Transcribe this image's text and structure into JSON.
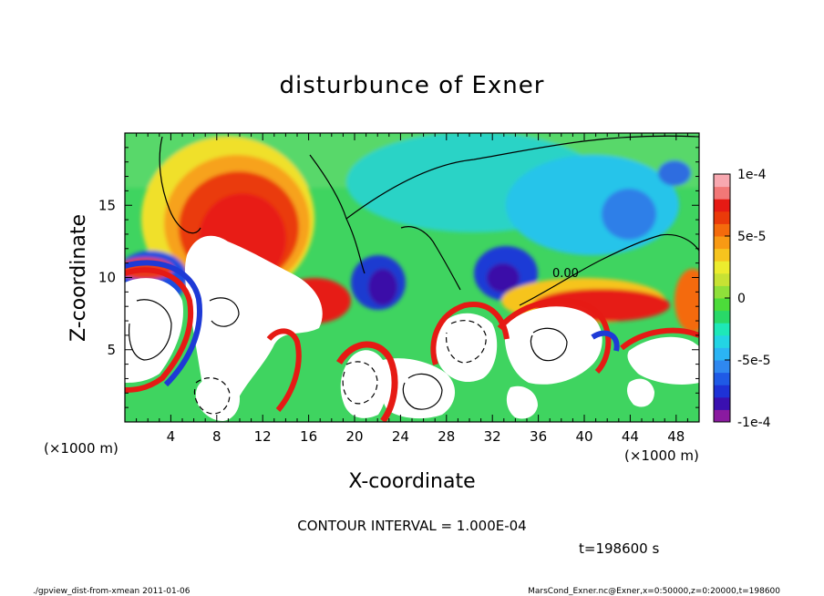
{
  "chart_data": {
    "type": "heatmap",
    "title": "disturbunce of Exner",
    "xlabel": "X-coordinate",
    "ylabel": "Z-coordinate",
    "x_unit": "(×1000 m)",
    "y_unit": "(×1000 m)",
    "xlim": [
      0,
      50
    ],
    "ylim": [
      0,
      20
    ],
    "x_ticks": [
      4,
      8,
      12,
      16,
      20,
      24,
      28,
      32,
      36,
      40,
      44,
      48
    ],
    "y_ticks": [
      5,
      10,
      15
    ],
    "colorbar": {
      "range": [
        -0.0001,
        0.0001
      ],
      "tick_labels": [
        "1e-4",
        "5e-5",
        "0",
        "-5e-5",
        "-1e-4"
      ],
      "tick_values": [
        0.0001,
        5e-05,
        0,
        -5e-05,
        -0.0001
      ],
      "colors_bottom_to_top": [
        "#8a1aa0",
        "#3a10b0",
        "#1e32d6",
        "#1f5ae6",
        "#2f88f0",
        "#2bb4f4",
        "#23d4e4",
        "#1ee8b8",
        "#29d968",
        "#4cdc3a",
        "#8fe03a",
        "#c7e234",
        "#ecec2e",
        "#f6c41e",
        "#f89a14",
        "#f46b0c",
        "#ea3a0a",
        "#e61a14",
        "#f27777",
        "#f8a8b0"
      ],
      "saturation_color": "#ffffff"
    },
    "contour_labels": [
      "0.00"
    ],
    "contour_interval_text": "CONTOUR INTERVAL = 1.000E-04",
    "time_text": "t=198600 s",
    "footer_left": "./gpview_dist-from-xmean  2011-01-06",
    "footer_right": "MarsCond_Exner.nc@Exner,x=0:50000,z=0:20000,t=198600"
  }
}
